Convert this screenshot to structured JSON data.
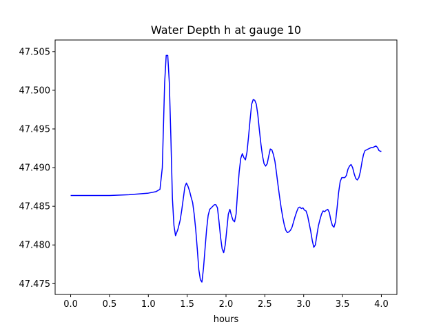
{
  "chart_data": {
    "type": "line",
    "title": "Water Depth h at gauge 10",
    "xlabel": "hours",
    "ylabel": "",
    "xlim": [
      -0.2,
      4.2
    ],
    "ylim": [
      47.4736,
      47.5065
    ],
    "xticks": [
      0.0,
      0.5,
      1.0,
      1.5,
      2.0,
      2.5,
      3.0,
      3.5,
      4.0
    ],
    "xtick_labels": [
      "0.0",
      "0.5",
      "1.0",
      "1.5",
      "2.0",
      "2.5",
      "3.0",
      "3.5",
      "4.0"
    ],
    "yticks": [
      47.475,
      47.48,
      47.485,
      47.49,
      47.495,
      47.5,
      47.505
    ],
    "ytick_labels": [
      "47.475",
      "47.480",
      "47.485",
      "47.490",
      "47.495",
      "47.500",
      "47.505"
    ],
    "grid": false,
    "series": [
      {
        "color": "#0000ff",
        "x": [
          0.0,
          0.5,
          0.75,
          1.0,
          1.1,
          1.15,
          1.18,
          1.21,
          1.23,
          1.25,
          1.27,
          1.29,
          1.31,
          1.33,
          1.35,
          1.38,
          1.41,
          1.43,
          1.45,
          1.47,
          1.49,
          1.51,
          1.53,
          1.55,
          1.57,
          1.59,
          1.61,
          1.63,
          1.65,
          1.67,
          1.69,
          1.71,
          1.73,
          1.75,
          1.77,
          1.79,
          1.81,
          1.83,
          1.85,
          1.87,
          1.89,
          1.91,
          1.93,
          1.95,
          1.97,
          1.99,
          2.01,
          2.03,
          2.05,
          2.07,
          2.09,
          2.11,
          2.13,
          2.15,
          2.17,
          2.19,
          2.21,
          2.23,
          2.25,
          2.27,
          2.29,
          2.31,
          2.33,
          2.35,
          2.37,
          2.39,
          2.41,
          2.43,
          2.45,
          2.47,
          2.49,
          2.51,
          2.53,
          2.55,
          2.57,
          2.59,
          2.61,
          2.63,
          2.65,
          2.67,
          2.69,
          2.71,
          2.73,
          2.75,
          2.77,
          2.79,
          2.81,
          2.83,
          2.85,
          2.87,
          2.89,
          2.91,
          2.93,
          2.95,
          2.97,
          2.99,
          3.01,
          3.03,
          3.05,
          3.07,
          3.09,
          3.11,
          3.13,
          3.15,
          3.17,
          3.19,
          3.21,
          3.23,
          3.25,
          3.27,
          3.29,
          3.31,
          3.33,
          3.35,
          3.37,
          3.39,
          3.41,
          3.43,
          3.45,
          3.47,
          3.49,
          3.51,
          3.53,
          3.55,
          3.57,
          3.59,
          3.61,
          3.63,
          3.65,
          3.67,
          3.69,
          3.71,
          3.73,
          3.75,
          3.77,
          3.79,
          3.81,
          3.83,
          3.85,
          3.87,
          3.89,
          3.91,
          3.93,
          3.95,
          3.97,
          3.99,
          4.0
        ],
        "y": [
          47.4864,
          47.4864,
          47.4865,
          47.4867,
          47.4869,
          47.4872,
          47.49,
          47.501,
          47.5045,
          47.5045,
          47.501,
          47.494,
          47.486,
          47.4825,
          47.4812,
          47.482,
          47.4832,
          47.4845,
          47.486,
          47.4875,
          47.488,
          47.4876,
          47.487,
          47.4862,
          47.4855,
          47.484,
          47.482,
          47.4795,
          47.4768,
          47.4755,
          47.4752,
          47.477,
          47.4795,
          47.482,
          47.4838,
          47.4846,
          47.4848,
          47.485,
          47.4852,
          47.4852,
          47.4848,
          47.483,
          47.481,
          47.4795,
          47.479,
          47.48,
          47.482,
          47.484,
          47.4846,
          47.4838,
          47.4832,
          47.483,
          47.484,
          47.487,
          47.4895,
          47.4912,
          47.4918,
          47.4913,
          47.491,
          47.492,
          47.494,
          47.4962,
          47.4982,
          47.4988,
          47.4987,
          47.4982,
          47.4968,
          47.4948,
          47.493,
          47.4915,
          47.4905,
          47.4902,
          47.4905,
          47.4915,
          47.4924,
          47.4923,
          47.4917,
          47.4908,
          47.4893,
          47.4877,
          47.4862,
          47.4848,
          47.4836,
          47.4826,
          47.4819,
          47.4816,
          47.4817,
          47.4819,
          47.4823,
          47.483,
          47.4837,
          47.4843,
          47.4848,
          47.4849,
          47.4847,
          47.4848,
          47.4845,
          47.4844,
          47.4838,
          47.4828,
          47.4818,
          47.4806,
          47.4797,
          47.48,
          47.4813,
          47.4825,
          47.4833,
          47.484,
          47.4844,
          47.4843,
          47.4845,
          47.4846,
          47.4842,
          47.4832,
          47.4825,
          47.4823,
          47.483,
          47.4848,
          47.4868,
          47.4882,
          47.4887,
          47.4887,
          47.4887,
          47.489,
          47.4898,
          47.4902,
          47.4904,
          47.49,
          47.4892,
          47.4886,
          47.4884,
          47.4887,
          47.4895,
          47.4907,
          47.4917,
          47.4922,
          47.4923,
          47.4924,
          47.4925,
          47.4926,
          47.4926,
          47.4927,
          47.4928,
          47.4926,
          47.4922,
          47.4921,
          47.4921
        ]
      }
    ]
  }
}
